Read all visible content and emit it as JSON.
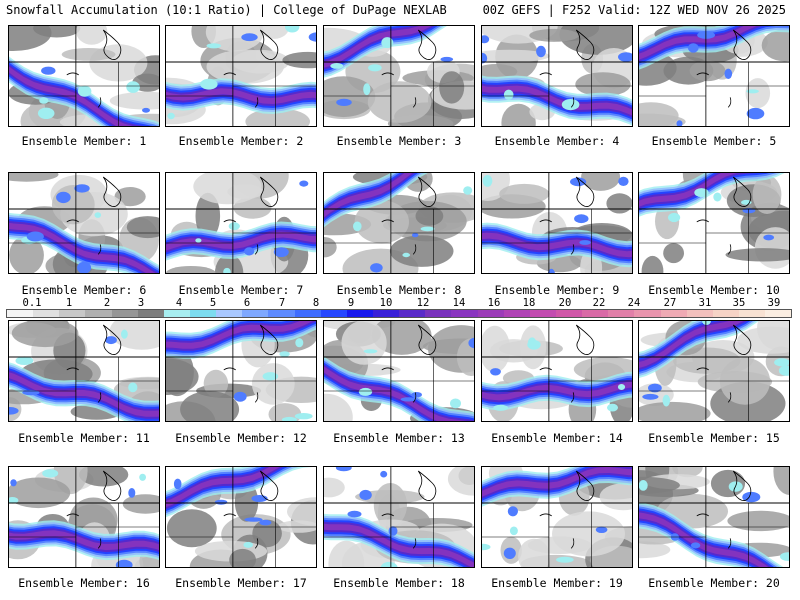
{
  "header": {
    "left": "Snowfall Accumulation (10:1 Ratio) | College of DuPage NEXLAB",
    "right": "00Z GEFS | F252 Valid: 12Z WED NOV 26 2025"
  },
  "caption_prefix": "Ensemble Member: ",
  "members": [
    "1",
    "2",
    "3",
    "4",
    "5",
    "6",
    "7",
    "8",
    "9",
    "10",
    "11",
    "12",
    "13",
    "14",
    "15",
    "16",
    "17",
    "18",
    "19",
    "20"
  ],
  "legend": {
    "ticks": [
      "0.1",
      "1",
      "2",
      "3",
      "4",
      "5",
      "6",
      "7",
      "8",
      "9",
      "10",
      "12",
      "14",
      "16",
      "18",
      "20",
      "22",
      "24",
      "27",
      "31",
      "35",
      "39"
    ],
    "colors": [
      "#f4f4f4",
      "#e0e0e0",
      "#c8c8c8",
      "#b0b0b0",
      "#969696",
      "#7e7e7e",
      "#a8eef0",
      "#7ddcef",
      "#a9c8ff",
      "#7fa8ff",
      "#5f8bff",
      "#3f6cff",
      "#2747ff",
      "#1a1aee",
      "#3a21d8",
      "#5a2bc9",
      "#7a33bd",
      "#8a36c0",
      "#9c3cb8",
      "#b043b5",
      "#c34cb0",
      "#d057a8",
      "#d96aa6",
      "#e17fa8",
      "#e994ad",
      "#efaab4",
      "#f3c0bd",
      "#f6d3c6",
      "#f8e2d3",
      "#fbeee2"
    ]
  }
}
